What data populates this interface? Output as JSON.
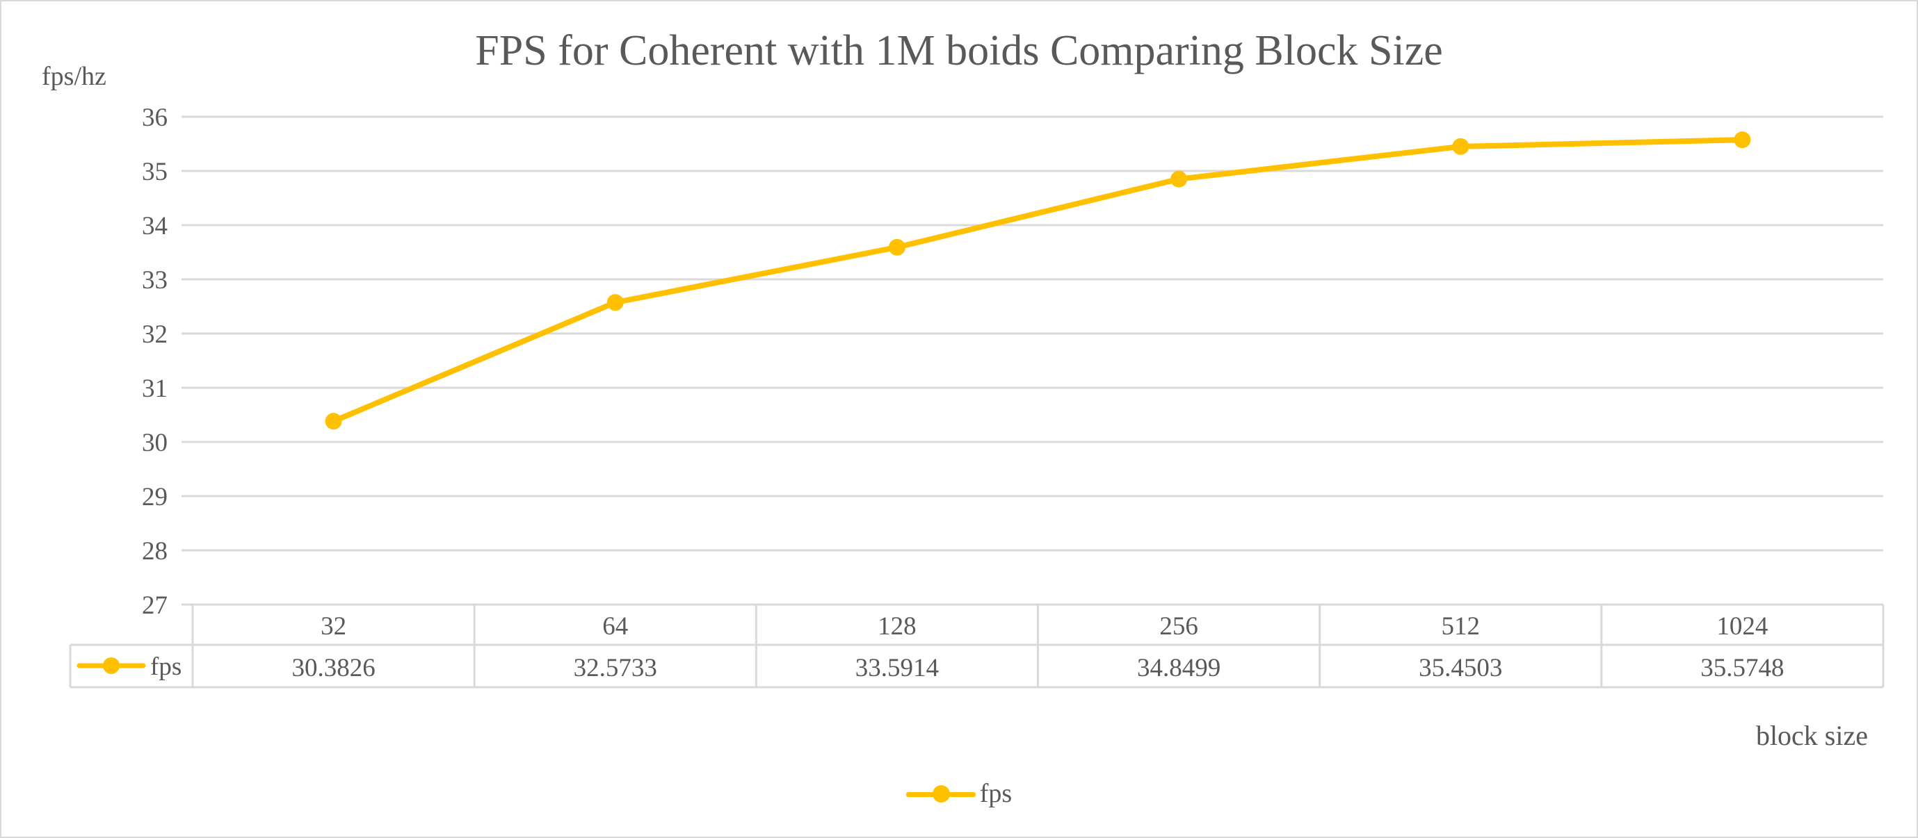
{
  "chart_data": {
    "type": "line",
    "title": "FPS for Coherent with 1M boids Comparing Block Size",
    "xlabel": "block size",
    "ylabel": "fps/hz",
    "categories": [
      "32",
      "64",
      "128",
      "256",
      "512",
      "1024"
    ],
    "series": [
      {
        "name": "fps",
        "values": [
          30.3826,
          32.5733,
          33.5914,
          34.8499,
          35.4503,
          35.5748
        ],
        "labels": [
          "30.3826",
          "32.5733",
          "33.5914",
          "34.8499",
          "35.4503",
          "35.5748"
        ],
        "color": "#FFC000"
      }
    ],
    "ylim": [
      27,
      36
    ],
    "yticks": [
      "27",
      "28",
      "29",
      "30",
      "31",
      "32",
      "33",
      "34",
      "35",
      "36"
    ],
    "grid": true,
    "data_table": true,
    "legend": "bottom"
  }
}
